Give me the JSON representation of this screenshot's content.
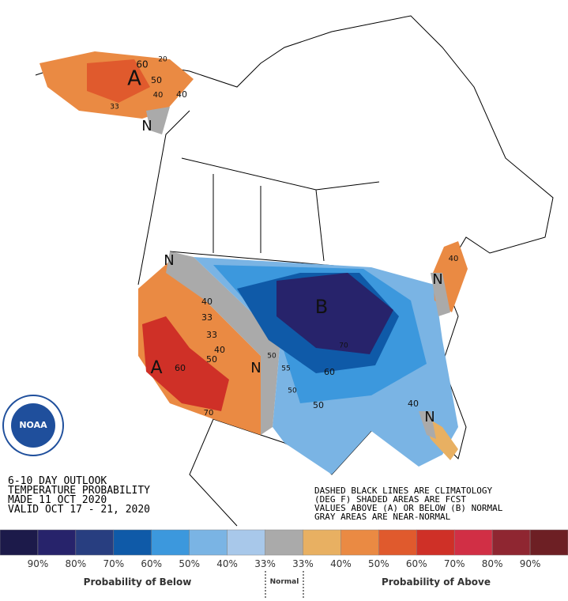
{
  "title_block": [
    "6-10 DAY OUTLOOK",
    "TEMPERATURE PROBABILITY",
    "MADE  11 OCT 2020",
    "VALID  OCT 17 - 21, 2020"
  ],
  "notes": [
    "DASHED BLACK LINES ARE CLIMATOLOGY",
    "(DEG F) SHADED AREAS ARE FCST",
    "VALUES ABOVE (A) OR BELOW (B) NORMAL",
    "GRAY AREAS ARE NEAR-NORMAL"
  ],
  "logo": "NOAA",
  "map_labels": [
    "A",
    "60",
    "50",
    "40",
    "20",
    "40",
    "33",
    "N",
    "N",
    "40",
    "33",
    "33",
    "40",
    "50",
    "A",
    "60",
    "70",
    "N",
    "50",
    "55",
    "B",
    "70",
    "60",
    "50",
    "50",
    "40",
    "N",
    "40",
    "N"
  ],
  "legend": {
    "colors": [
      "#1c1a4a",
      "#27236b",
      "#283e80",
      "#0f5aa8",
      "#3c98dd",
      "#7ab4e4",
      "#a8c8ea",
      "#aaaaaa",
      "#e8b062",
      "#ea8a43",
      "#e05a2d",
      "#cf3027",
      "#d12f45",
      "#8f2631",
      "#6d1f24"
    ],
    "labels": [
      "90%",
      "80%",
      "70%",
      "60%",
      "50%",
      "40%",
      "33%",
      "33%",
      "40%",
      "50%",
      "60%",
      "70%",
      "80%",
      "90%"
    ],
    "below": "Probability of Below",
    "normal": "Normal",
    "above": "Probability of Above"
  }
}
